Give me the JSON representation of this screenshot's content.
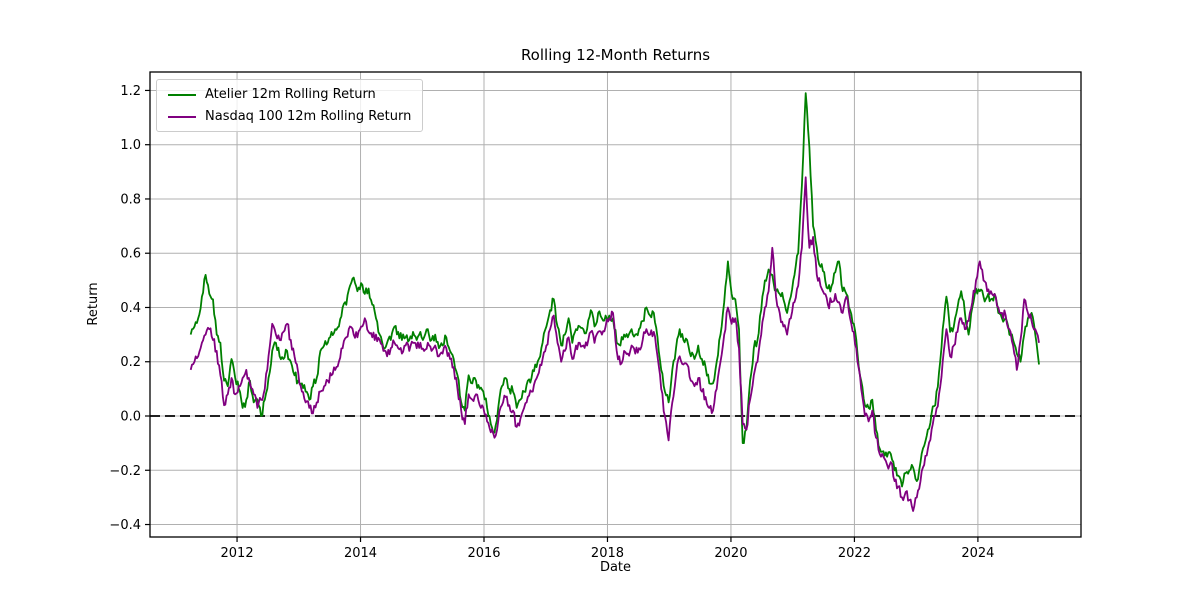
{
  "chart_data": {
    "type": "line",
    "title": "Rolling 12-Month Returns",
    "xlabel": "Date",
    "ylabel": "Return",
    "xlim": [
      2010.59,
      2025.67
    ],
    "ylim": [
      -0.446,
      1.268
    ],
    "xticks": [
      2012,
      2014,
      2016,
      2018,
      2020,
      2022,
      2024
    ],
    "xtick_labels": [
      "2012",
      "2014",
      "2016",
      "2018",
      "2020",
      "2022",
      "2024"
    ],
    "yticks": [
      -0.4,
      -0.2,
      0.0,
      0.2,
      0.4,
      0.6,
      0.8,
      1.0,
      1.2
    ],
    "ytick_labels": [
      "−0.4",
      "−0.2",
      "0.0",
      "0.2",
      "0.4",
      "0.6",
      "0.8",
      "1.0",
      "1.2"
    ],
    "grid": true,
    "grid_color": "#b0b0b0",
    "axes_border_color": "#000000",
    "zero_line": {
      "y": 0.0,
      "style": "dashed",
      "color": "#000000"
    },
    "legend_position": "upper left",
    "x_start": 2011.25,
    "x_step": 0.06,
    "noise_amplitude": 0.018,
    "series": [
      {
        "name": "Atelier 12m Rolling Return",
        "color": "#008000",
        "values": [
          0.3,
          0.33,
          0.36,
          0.44,
          0.52,
          0.45,
          0.43,
          0.3,
          0.27,
          0.13,
          0.11,
          0.21,
          0.14,
          0.1,
          0.03,
          0.06,
          0.13,
          0.05,
          0.06,
          0.0,
          0.06,
          0.14,
          0.24,
          0.27,
          0.22,
          0.21,
          0.24,
          0.2,
          0.15,
          0.13,
          0.12,
          0.09,
          0.06,
          0.11,
          0.14,
          0.24,
          0.26,
          0.27,
          0.31,
          0.32,
          0.33,
          0.4,
          0.41,
          0.48,
          0.51,
          0.46,
          0.49,
          0.45,
          0.47,
          0.41,
          0.36,
          0.3,
          0.25,
          0.27,
          0.28,
          0.33,
          0.31,
          0.28,
          0.29,
          0.28,
          0.31,
          0.28,
          0.31,
          0.29,
          0.32,
          0.28,
          0.3,
          0.25,
          0.26,
          0.29,
          0.24,
          0.21,
          0.15,
          0.05,
          0.02,
          0.15,
          0.12,
          0.13,
          0.1,
          0.09,
          0.03,
          -0.03,
          -0.06,
          0.03,
          0.11,
          0.14,
          0.1,
          0.09,
          0.03,
          0.06,
          0.09,
          0.13,
          0.14,
          0.19,
          0.21,
          0.27,
          0.33,
          0.39,
          0.43,
          0.33,
          0.26,
          0.3,
          0.36,
          0.27,
          0.32,
          0.33,
          0.32,
          0.32,
          0.39,
          0.33,
          0.38,
          0.36,
          0.37,
          0.37,
          0.36,
          0.27,
          0.26,
          0.3,
          0.29,
          0.32,
          0.3,
          0.32,
          0.35,
          0.4,
          0.37,
          0.38,
          0.29,
          0.17,
          0.09,
          0.05,
          0.17,
          0.25,
          0.32,
          0.28,
          0.28,
          0.22,
          0.21,
          0.26,
          0.21,
          0.18,
          0.12,
          0.12,
          0.2,
          0.3,
          0.42,
          0.57,
          0.45,
          0.43,
          0.32,
          -0.1,
          -0.05,
          0.13,
          0.25,
          0.28,
          0.39,
          0.5,
          0.54,
          0.52,
          0.46,
          0.45,
          0.43,
          0.38,
          0.44,
          0.52,
          0.6,
          0.85,
          1.19,
          0.99,
          0.7,
          0.62,
          0.55,
          0.53,
          0.47,
          0.48,
          0.53,
          0.57,
          0.46,
          0.45,
          0.39,
          0.34,
          0.23,
          0.13,
          0.04,
          0.03,
          0.06,
          -0.05,
          -0.12,
          -0.13,
          -0.15,
          -0.14,
          -0.2,
          -0.22,
          -0.26,
          -0.21,
          -0.2,
          -0.19,
          -0.24,
          -0.17,
          -0.11,
          -0.05,
          0.01,
          0.04,
          0.16,
          0.32,
          0.44,
          0.31,
          0.33,
          0.4,
          0.46,
          0.38,
          0.3,
          0.4,
          0.47,
          0.46,
          0.44,
          0.44,
          0.43,
          0.45,
          0.38,
          0.36,
          0.36,
          0.3,
          0.28,
          0.23,
          0.2,
          0.3,
          0.36,
          0.38,
          0.3,
          0.19
        ]
      },
      {
        "name": "Nasdaq 100 12m Rolling Return",
        "color": "#800080",
        "values": [
          0.17,
          0.2,
          0.22,
          0.27,
          0.3,
          0.32,
          0.28,
          0.24,
          0.15,
          0.04,
          0.08,
          0.14,
          0.08,
          0.11,
          0.14,
          0.17,
          0.12,
          0.08,
          0.03,
          0.06,
          0.1,
          0.22,
          0.34,
          0.3,
          0.28,
          0.31,
          0.34,
          0.28,
          0.22,
          0.16,
          0.09,
          0.05,
          0.03,
          0.01,
          0.05,
          0.09,
          0.11,
          0.13,
          0.15,
          0.17,
          0.2,
          0.25,
          0.29,
          0.33,
          0.3,
          0.29,
          0.33,
          0.36,
          0.31,
          0.29,
          0.3,
          0.28,
          0.24,
          0.22,
          0.25,
          0.27,
          0.25,
          0.23,
          0.26,
          0.24,
          0.27,
          0.25,
          0.27,
          0.24,
          0.27,
          0.24,
          0.26,
          0.22,
          0.23,
          0.25,
          0.21,
          0.18,
          0.1,
          0.02,
          -0.03,
          0.08,
          0.06,
          0.08,
          0.04,
          0.03,
          -0.02,
          -0.06,
          -0.08,
          -0.02,
          0.04,
          0.07,
          0.04,
          0.02,
          -0.04,
          -0.01,
          0.03,
          0.07,
          0.09,
          0.13,
          0.16,
          0.21,
          0.26,
          0.32,
          0.37,
          0.27,
          0.2,
          0.24,
          0.29,
          0.21,
          0.26,
          0.27,
          0.26,
          0.26,
          0.31,
          0.27,
          0.31,
          0.3,
          0.33,
          0.36,
          0.38,
          0.24,
          0.19,
          0.24,
          0.23,
          0.26,
          0.23,
          0.25,
          0.28,
          0.32,
          0.3,
          0.31,
          0.22,
          0.1,
          0.0,
          -0.09,
          0.05,
          0.15,
          0.22,
          0.19,
          0.19,
          0.13,
          0.11,
          0.14,
          0.09,
          0.07,
          0.03,
          0.02,
          0.1,
          0.2,
          0.3,
          0.4,
          0.34,
          0.36,
          0.25,
          -0.03,
          -0.05,
          0.06,
          0.15,
          0.2,
          0.3,
          0.4,
          0.46,
          0.62,
          0.44,
          0.38,
          0.33,
          0.3,
          0.36,
          0.42,
          0.48,
          0.62,
          0.88,
          0.62,
          0.66,
          0.52,
          0.48,
          0.45,
          0.41,
          0.42,
          0.45,
          0.42,
          0.38,
          0.44,
          0.36,
          0.31,
          0.2,
          0.1,
          0.0,
          -0.02,
          0.02,
          -0.08,
          -0.14,
          -0.15,
          -0.18,
          -0.17,
          -0.24,
          -0.26,
          -0.3,
          -0.28,
          -0.31,
          -0.35,
          -0.3,
          -0.24,
          -0.18,
          -0.12,
          -0.05,
          0.0,
          0.08,
          0.2,
          0.32,
          0.22,
          0.26,
          0.31,
          0.36,
          0.32,
          0.35,
          0.42,
          0.5,
          0.57,
          0.5,
          0.46,
          0.46,
          0.45,
          0.4,
          0.38,
          0.37,
          0.32,
          0.26,
          0.17,
          0.28,
          0.43,
          0.38,
          0.35,
          0.32,
          0.27
        ]
      }
    ]
  }
}
